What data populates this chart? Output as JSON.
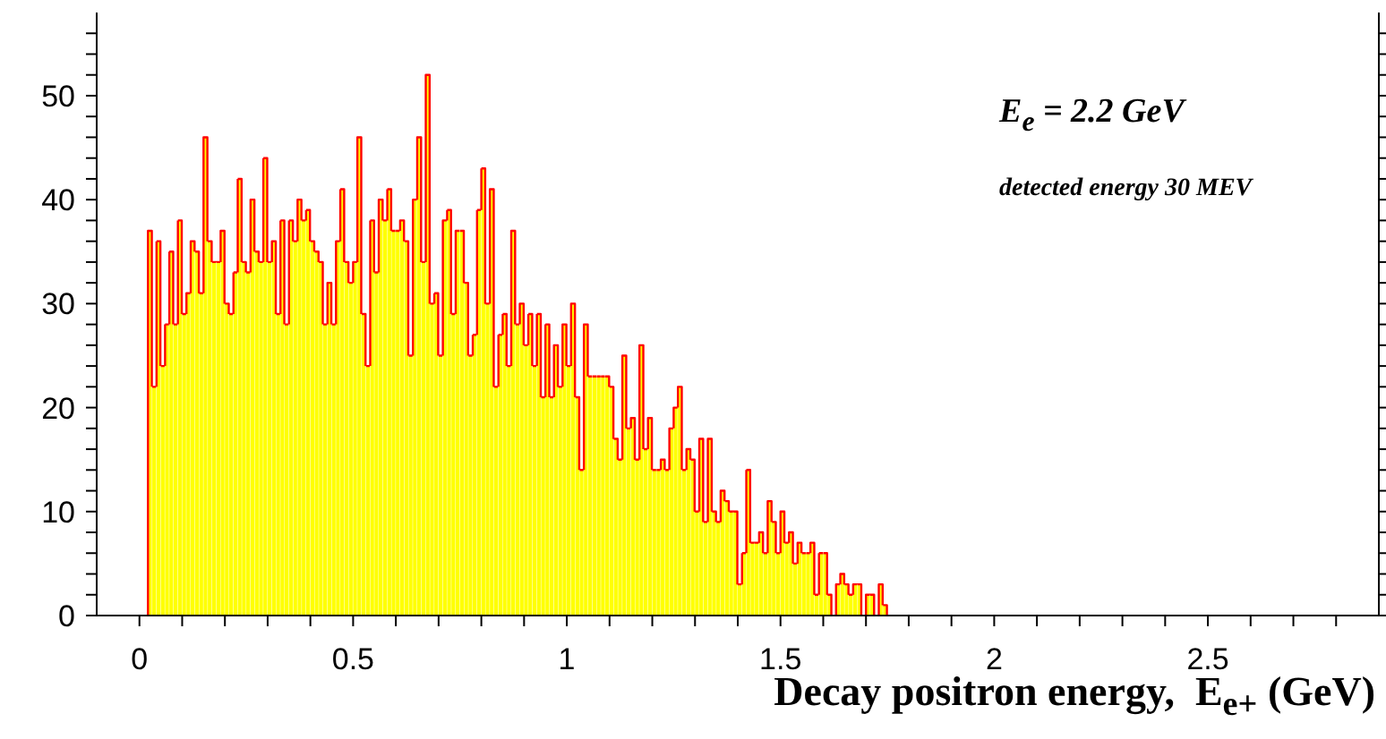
{
  "chart_data": {
    "type": "histogram",
    "xlabel": "Decay positron energy,  E$_{e+}$ (GeV)",
    "annotations": [
      "E$_{e}$ = 2.2 GeV",
      "detected energy  30 MEV"
    ],
    "color": "#ffff00",
    "bins": [
      0.02,
      0.03,
      0.04,
      0.05,
      0.06,
      0.07,
      0.08,
      0.09,
      0.1,
      0.11,
      0.12,
      0.13,
      0.14,
      0.15,
      0.16,
      0.17,
      0.18,
      0.19,
      0.2,
      0.21,
      0.22,
      0.23,
      0.24,
      0.25,
      0.26,
      0.27,
      0.28,
      0.29,
      0.3,
      0.31,
      0.32,
      0.33,
      0.34,
      0.35,
      0.36,
      0.37,
      0.38,
      0.39,
      0.4,
      0.41,
      0.42,
      0.43,
      0.44,
      0.45,
      0.46,
      0.47,
      0.48,
      0.49,
      0.5,
      0.51,
      0.52,
      0.53,
      0.54,
      0.55,
      0.56,
      0.57,
      0.58,
      0.59,
      0.6,
      0.61,
      0.62,
      0.63,
      0.64,
      0.65,
      0.66,
      0.67,
      0.68,
      0.69,
      0.7,
      0.71,
      0.72,
      0.73,
      0.74,
      0.75,
      0.76,
      0.77,
      0.78,
      0.79,
      0.8,
      0.81,
      0.82,
      0.83,
      0.84,
      0.85,
      0.86,
      0.87,
      0.88,
      0.89,
      0.9,
      0.91,
      0.92,
      0.93,
      0.94,
      0.95,
      0.96,
      0.97,
      0.98,
      0.99,
      1.0,
      1.01,
      1.02,
      1.03,
      1.04,
      1.05,
      1.06,
      1.07,
      1.08,
      1.09,
      1.1,
      1.11,
      1.12,
      1.13,
      1.14,
      1.15,
      1.16,
      1.17,
      1.18,
      1.19,
      1.2,
      1.21,
      1.22,
      1.23,
      1.24,
      1.25,
      1.26,
      1.27,
      1.28,
      1.29,
      1.3,
      1.31,
      1.32,
      1.33,
      1.34,
      1.35,
      1.36,
      1.37,
      1.38,
      1.39,
      1.4,
      1.41,
      1.42,
      1.43,
      1.44,
      1.45,
      1.46,
      1.47,
      1.48,
      1.49,
      1.5,
      1.51,
      1.52,
      1.53,
      1.54,
      1.55,
      1.56,
      1.57,
      1.58,
      1.59,
      1.6,
      1.61,
      1.62,
      1.63,
      1.64,
      1.65,
      1.66,
      1.67,
      1.68,
      1.69,
      1.7,
      1.71,
      1.72,
      1.73,
      1.74,
      1.75
    ],
    "values": [
      37,
      22,
      36,
      24,
      28,
      35,
      28,
      38,
      29,
      31,
      36,
      35,
      31,
      46,
      36,
      34,
      34,
      37,
      30,
      29,
      33,
      42,
      34,
      33,
      40,
      35,
      34,
      44,
      34,
      36,
      29,
      38,
      28,
      38,
      36,
      40,
      38,
      39,
      36,
      35,
      34,
      28,
      32,
      28,
      36,
      41,
      34,
      32,
      34,
      46,
      29,
      24,
      38,
      33,
      40,
      38,
      41,
      37,
      37,
      38,
      36,
      25,
      40,
      46,
      34,
      52,
      30,
      31,
      25,
      38,
      39,
      29,
      37,
      37,
      32,
      25,
      27,
      39,
      43,
      30,
      41,
      22,
      27,
      29,
      24,
      37,
      28,
      30,
      26,
      29,
      24,
      29,
      21,
      28,
      21,
      26,
      22,
      28,
      24,
      30,
      21,
      14,
      28,
      23,
      23,
      23,
      23,
      23,
      22,
      17,
      15,
      25,
      18,
      19,
      15,
      26,
      16,
      19,
      14,
      14,
      15,
      14,
      18,
      20,
      22,
      14,
      16,
      15,
      10,
      17,
      9,
      17,
      10,
      9,
      12,
      11,
      10,
      10,
      3,
      6,
      14,
      7,
      7,
      8,
      6,
      11,
      9,
      6,
      10,
      7,
      8,
      5,
      7,
      6,
      6,
      7,
      2,
      6,
      6,
      2,
      0,
      3,
      4,
      3,
      2,
      3,
      3,
      0,
      2,
      2,
      0,
      3,
      1
    ],
    "xlim": [
      -0.1,
      2.9
    ],
    "xticks": [
      0,
      {
        "value": 0.1,
        "label": null
      },
      {
        "value": 0.2,
        "label": null
      },
      {
        "value": 0.3,
        "label": null
      },
      {
        "value": 0.4,
        "label": null
      },
      0.5,
      {
        "value": 0.6,
        "label": null
      },
      {
        "value": 0.7,
        "label": null
      },
      {
        "value": 0.8,
        "label": null
      },
      {
        "value": 0.9,
        "label": null
      },
      1,
      {
        "value": 1.1,
        "label": null
      },
      {
        "value": 1.2,
        "label": null
      },
      {
        "value": 1.3,
        "label": null
      },
      {
        "value": 1.4,
        "label": null
      },
      1.5,
      {
        "value": 1.6,
        "label": null
      },
      {
        "value": 1.7,
        "label": null
      },
      {
        "value": 1.8,
        "label": null
      },
      {
        "value": 1.9,
        "label": null
      },
      2,
      {
        "value": 2.1,
        "label": null
      },
      {
        "value": 2.2,
        "label": null
      },
      {
        "value": 2.3,
        "label": null
      },
      {
        "value": 2.4,
        "label": null
      },
      2.5,
      {
        "value": 2.6,
        "label": null
      },
      {
        "value": 2.7,
        "label": null
      },
      {
        "value": 2.8,
        "label": null
      }
    ],
    "ylim": [
      0,
      58
    ],
    "yticks": [
      0,
      {
        "value": 2,
        "label": null
      },
      {
        "value": 4,
        "label": null
      },
      {
        "value": 6,
        "label": null
      },
      {
        "value": 8,
        "label": null
      },
      10,
      {
        "value": 12,
        "label": null
      },
      {
        "value": 14,
        "label": null
      },
      {
        "value": 16,
        "label": null
      },
      {
        "value": 18,
        "label": null
      },
      20,
      {
        "value": 22,
        "label": null
      },
      {
        "value": 24,
        "label": null
      },
      {
        "value": 26,
        "label": null
      },
      {
        "value": 28,
        "label": null
      },
      30,
      {
        "value": 32,
        "label": null
      },
      {
        "value": 34,
        "label": null
      },
      {
        "value": 36,
        "label": null
      },
      {
        "value": 38,
        "label": null
      },
      40,
      {
        "value": 42,
        "label": null
      },
      {
        "value": 44,
        "label": null
      },
      {
        "value": 46,
        "label": null
      },
      {
        "value": 48,
        "label": null
      },
      50,
      {
        "value": 52,
        "label": null
      },
      {
        "value": 54,
        "label": null
      },
      {
        "value": 56,
        "label": null
      }
    ]
  }
}
